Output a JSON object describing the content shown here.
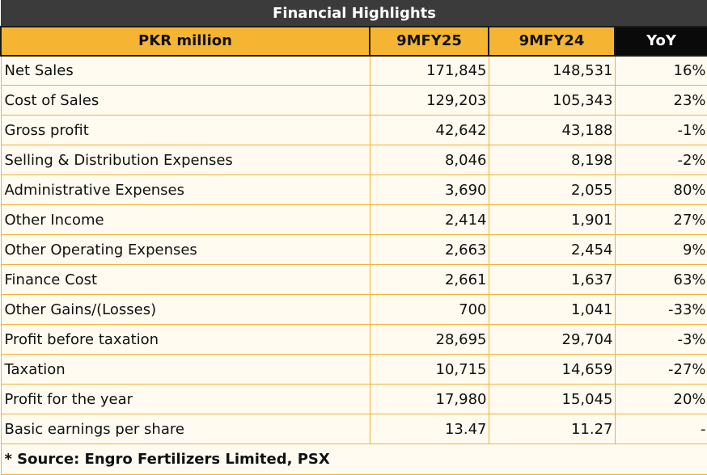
{
  "title": "Financial Highlights",
  "columns": {
    "label": "PKR million",
    "col1": "9MFY25",
    "col2": "9MFY24",
    "col3": "YoY"
  },
  "rows": [
    {
      "label": "Net Sales",
      "fy25": "171,845",
      "fy24": "148,531",
      "yoy": "16%"
    },
    {
      "label": "Cost of Sales",
      "fy25": "129,203",
      "fy24": "105,343",
      "yoy": "23%"
    },
    {
      "label": "Gross profit",
      "fy25": "42,642",
      "fy24": "43,188",
      "yoy": "-1%"
    },
    {
      "label": "Selling & Distribution Expenses",
      "fy25": "8,046",
      "fy24": "8,198",
      "yoy": "-2%"
    },
    {
      "label": "Administrative Expenses",
      "fy25": "3,690",
      "fy24": "2,055",
      "yoy": "80%"
    },
    {
      "label": "Other Income",
      "fy25": "2,414",
      "fy24": "1,901",
      "yoy": "27%"
    },
    {
      "label": "Other Operating Expenses",
      "fy25": "2,663",
      "fy24": "2,454",
      "yoy": "9%"
    },
    {
      "label": "Finance Cost",
      "fy25": "2,661",
      "fy24": "1,637",
      "yoy": "63%"
    },
    {
      "label": "Other Gains/(Losses)",
      "fy25": "700",
      "fy24": "1,041",
      "yoy": "-33%"
    },
    {
      "label": "Profit before taxation",
      "fy25": "28,695",
      "fy24": "29,704",
      "yoy": "-3%"
    },
    {
      "label": "Taxation",
      "fy25": "10,715",
      "fy24": "14,659",
      "yoy": "-27%"
    },
    {
      "label": "Profit for the year",
      "fy25": "17,980",
      "fy24": "15,045",
      "yoy": "20%"
    },
    {
      "label": "Basic earnings per share",
      "fy25": "13.47",
      "fy24": "11.27",
      "yoy": "-"
    }
  ],
  "source": "* Source: Engro Fertilizers Limited, PSX",
  "colors": {
    "title_bg": "#3b3b3b",
    "header_bg": "#f5b533",
    "yoy_header_bg": "#0a0a0a",
    "row_bg": "#fffbf0",
    "border": "#f2b233"
  }
}
